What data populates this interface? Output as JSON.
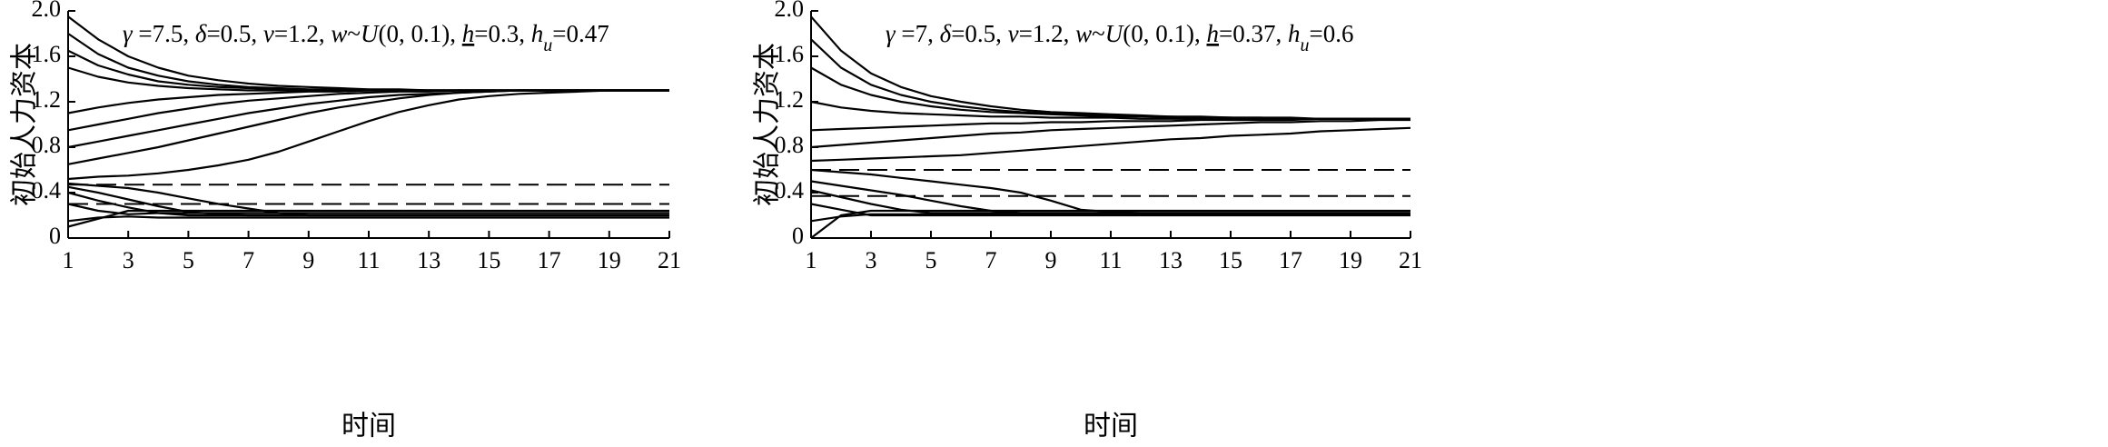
{
  "chart_data": [
    {
      "type": "line",
      "color": "#000000",
      "y_label": "初始人力资本",
      "x_label": "时间",
      "annotation_parts": [
        {
          "text": "γ",
          "style": "italic"
        },
        {
          "text": " =7.5, ",
          "style": "normal"
        },
        {
          "text": "δ",
          "style": "italic"
        },
        {
          "text": "=0.5, ",
          "style": "normal"
        },
        {
          "text": "v",
          "style": "italic"
        },
        {
          "text": "=1.2, ",
          "style": "normal"
        },
        {
          "text": "w",
          "style": "italic"
        },
        {
          "text": "~",
          "style": "normal"
        },
        {
          "text": "U",
          "style": "italic"
        },
        {
          "text": "(0, 0.1), ",
          "style": "normal"
        },
        {
          "text": "h",
          "style": "underline-italic"
        },
        {
          "text": "=0.3, ",
          "style": "normal"
        },
        {
          "text": "h",
          "style": "italic"
        },
        {
          "text": "u",
          "style": "sub-italic"
        },
        {
          "text": "=0.47",
          "style": "normal"
        }
      ],
      "reference_lines": [
        0.47,
        0.3
      ],
      "reference_line_style": "dashed",
      "x": [
        1,
        2,
        3,
        4,
        5,
        6,
        7,
        8,
        9,
        10,
        11,
        12,
        13,
        14,
        15,
        16,
        17,
        18,
        19,
        20,
        21
      ],
      "xlim": [
        1,
        21
      ],
      "xticks": [
        1,
        3,
        5,
        7,
        9,
        11,
        13,
        15,
        17,
        19,
        21
      ],
      "ylim": [
        0,
        2
      ],
      "yticks": [
        0,
        0.4,
        0.8,
        1.2,
        1.6,
        {
          "value": 2,
          "label": "2.0"
        }
      ],
      "series": [
        {
          "values": [
            1.95,
            1.75,
            1.6,
            1.5,
            1.43,
            1.39,
            1.36,
            1.34,
            1.33,
            1.32,
            1.31,
            1.31,
            1.3,
            1.3,
            1.3,
            1.3,
            1.3,
            1.3,
            1.3,
            1.3,
            1.3
          ]
        },
        {
          "values": [
            1.8,
            1.62,
            1.5,
            1.43,
            1.38,
            1.35,
            1.33,
            1.32,
            1.31,
            1.31,
            1.3,
            1.3,
            1.3,
            1.3,
            1.3,
            1.3,
            1.3,
            1.3,
            1.3,
            1.3,
            1.3
          ]
        },
        {
          "values": [
            1.65,
            1.52,
            1.44,
            1.38,
            1.35,
            1.33,
            1.32,
            1.31,
            1.3,
            1.3,
            1.3,
            1.3,
            1.3,
            1.3,
            1.3,
            1.3,
            1.3,
            1.3,
            1.3,
            1.3,
            1.3
          ]
        },
        {
          "values": [
            1.5,
            1.42,
            1.37,
            1.34,
            1.32,
            1.31,
            1.3,
            1.3,
            1.3,
            1.3,
            1.3,
            1.3,
            1.3,
            1.3,
            1.3,
            1.3,
            1.3,
            1.3,
            1.3,
            1.3,
            1.3
          ]
        },
        {
          "values": [
            1.1,
            1.15,
            1.19,
            1.22,
            1.24,
            1.26,
            1.27,
            1.28,
            1.29,
            1.29,
            1.3,
            1.3,
            1.3,
            1.3,
            1.3,
            1.3,
            1.3,
            1.3,
            1.3,
            1.3,
            1.3
          ]
        },
        {
          "values": [
            0.95,
            1.0,
            1.05,
            1.1,
            1.14,
            1.18,
            1.21,
            1.23,
            1.25,
            1.27,
            1.28,
            1.29,
            1.29,
            1.3,
            1.3,
            1.3,
            1.3,
            1.3,
            1.3,
            1.3,
            1.3
          ]
        },
        {
          "values": [
            0.8,
            0.85,
            0.9,
            0.95,
            1.0,
            1.05,
            1.1,
            1.14,
            1.18,
            1.21,
            1.24,
            1.26,
            1.27,
            1.28,
            1.29,
            1.3,
            1.3,
            1.3,
            1.3,
            1.3,
            1.3
          ]
        },
        {
          "values": [
            0.65,
            0.7,
            0.75,
            0.8,
            0.86,
            0.92,
            0.98,
            1.04,
            1.1,
            1.15,
            1.19,
            1.23,
            1.26,
            1.28,
            1.29,
            1.3,
            1.3,
            1.3,
            1.3,
            1.3,
            1.3
          ]
        },
        {
          "values": [
            0.52,
            0.54,
            0.55,
            0.57,
            0.6,
            0.64,
            0.69,
            0.76,
            0.85,
            0.94,
            1.03,
            1.11,
            1.17,
            1.22,
            1.25,
            1.27,
            1.28,
            1.29,
            1.3,
            1.3,
            1.3
          ]
        },
        {
          "values": [
            0.48,
            0.46,
            0.44,
            0.4,
            0.35,
            0.3,
            0.26,
            0.22,
            0.2,
            0.2,
            0.2,
            0.2,
            0.2,
            0.2,
            0.2,
            0.2,
            0.2,
            0.2,
            0.2,
            0.2,
            0.2
          ]
        },
        {
          "values": [
            0.45,
            0.4,
            0.34,
            0.28,
            0.23,
            0.21,
            0.2,
            0.2,
            0.2,
            0.2,
            0.2,
            0.2,
            0.2,
            0.2,
            0.2,
            0.2,
            0.2,
            0.2,
            0.2,
            0.2,
            0.2
          ]
        },
        {
          "values": [
            0.4,
            0.33,
            0.27,
            0.22,
            0.2,
            0.2,
            0.2,
            0.2,
            0.2,
            0.2,
            0.2,
            0.2,
            0.2,
            0.2,
            0.2,
            0.2,
            0.2,
            0.2,
            0.2,
            0.2,
            0.2
          ]
        },
        {
          "values": [
            0.3,
            0.24,
            0.21,
            0.22,
            0.22,
            0.22,
            0.22,
            0.22,
            0.22,
            0.22,
            0.22,
            0.22,
            0.22,
            0.22,
            0.22,
            0.22,
            0.22,
            0.22,
            0.22,
            0.22,
            0.22
          ]
        },
        {
          "values": [
            0.15,
            0.18,
            0.19,
            0.18,
            0.18,
            0.18,
            0.18,
            0.18,
            0.18,
            0.18,
            0.18,
            0.18,
            0.18,
            0.18,
            0.18,
            0.18,
            0.18,
            0.18,
            0.18,
            0.18,
            0.18
          ]
        },
        {
          "values": [
            0.1,
            0.17,
            0.24,
            0.24,
            0.24,
            0.24,
            0.24,
            0.24,
            0.24,
            0.24,
            0.24,
            0.24,
            0.24,
            0.24,
            0.24,
            0.24,
            0.24,
            0.24,
            0.24,
            0.24,
            0.24
          ]
        }
      ]
    },
    {
      "type": "line",
      "color": "#000000",
      "y_label": "初始人力资本",
      "x_label": "时间",
      "annotation_parts": [
        {
          "text": "γ",
          "style": "italic"
        },
        {
          "text": " =7, ",
          "style": "normal"
        },
        {
          "text": "δ",
          "style": "italic"
        },
        {
          "text": "=0.5, ",
          "style": "normal"
        },
        {
          "text": "v",
          "style": "italic"
        },
        {
          "text": "=1.2, ",
          "style": "normal"
        },
        {
          "text": "w",
          "style": "italic"
        },
        {
          "text": "~",
          "style": "normal"
        },
        {
          "text": "U",
          "style": "italic"
        },
        {
          "text": "(0, 0.1), ",
          "style": "normal"
        },
        {
          "text": "h",
          "style": "underline-italic"
        },
        {
          "text": "=0.37, ",
          "style": "normal"
        },
        {
          "text": "h",
          "style": "italic"
        },
        {
          "text": "u",
          "style": "sub-italic"
        },
        {
          "text": "=0.6",
          "style": "normal"
        }
      ],
      "reference_lines": [
        0.6,
        0.37
      ],
      "reference_line_style": "dashed",
      "x": [
        1,
        2,
        3,
        4,
        5,
        6,
        7,
        8,
        9,
        10,
        11,
        12,
        13,
        14,
        15,
        16,
        17,
        18,
        19,
        20,
        21
      ],
      "xlim": [
        1,
        21
      ],
      "xticks": [
        1,
        3,
        5,
        7,
        9,
        11,
        13,
        15,
        17,
        19,
        21
      ],
      "ylim": [
        0,
        2
      ],
      "yticks": [
        0,
        0.4,
        0.8,
        1.2,
        1.6,
        {
          "value": 2,
          "label": "2.0"
        }
      ],
      "series": [
        {
          "values": [
            1.95,
            1.65,
            1.45,
            1.33,
            1.25,
            1.2,
            1.16,
            1.13,
            1.11,
            1.1,
            1.09,
            1.08,
            1.07,
            1.07,
            1.06,
            1.06,
            1.06,
            1.05,
            1.05,
            1.05,
            1.05
          ]
        },
        {
          "values": [
            1.75,
            1.5,
            1.35,
            1.26,
            1.2,
            1.16,
            1.13,
            1.11,
            1.1,
            1.09,
            1.08,
            1.07,
            1.07,
            1.06,
            1.06,
            1.06,
            1.05,
            1.05,
            1.05,
            1.05,
            1.05
          ]
        },
        {
          "values": [
            1.5,
            1.35,
            1.26,
            1.2,
            1.16,
            1.13,
            1.11,
            1.1,
            1.09,
            1.08,
            1.07,
            1.07,
            1.06,
            1.06,
            1.06,
            1.05,
            1.05,
            1.05,
            1.05,
            1.05,
            1.05
          ]
        },
        {
          "values": [
            1.2,
            1.15,
            1.12,
            1.1,
            1.09,
            1.08,
            1.07,
            1.07,
            1.06,
            1.06,
            1.06,
            1.05,
            1.05,
            1.05,
            1.05,
            1.05,
            1.05,
            1.05,
            1.05,
            1.05,
            1.05
          ]
        },
        {
          "values": [
            0.95,
            0.96,
            0.97,
            0.98,
            0.99,
            1.0,
            1.01,
            1.01,
            1.02,
            1.02,
            1.03,
            1.03,
            1.03,
            1.04,
            1.04,
            1.04,
            1.04,
            1.05,
            1.05,
            1.05,
            1.05
          ]
        },
        {
          "values": [
            0.8,
            0.82,
            0.84,
            0.86,
            0.88,
            0.9,
            0.92,
            0.93,
            0.95,
            0.96,
            0.97,
            0.98,
            0.99,
            1.0,
            1.01,
            1.02,
            1.02,
            1.03,
            1.03,
            1.04,
            1.04
          ]
        },
        {
          "values": [
            0.68,
            0.69,
            0.7,
            0.71,
            0.72,
            0.73,
            0.75,
            0.77,
            0.79,
            0.81,
            0.83,
            0.85,
            0.87,
            0.88,
            0.9,
            0.91,
            0.92,
            0.94,
            0.95,
            0.96,
            0.97
          ]
        },
        {
          "values": [
            0.6,
            0.58,
            0.56,
            0.53,
            0.5,
            0.47,
            0.44,
            0.4,
            0.33,
            0.25,
            0.23,
            0.22,
            0.22,
            0.22,
            0.22,
            0.22,
            0.22,
            0.22,
            0.22,
            0.22,
            0.22
          ]
        },
        {
          "values": [
            0.5,
            0.46,
            0.42,
            0.38,
            0.33,
            0.28,
            0.24,
            0.22,
            0.22,
            0.22,
            0.22,
            0.22,
            0.22,
            0.22,
            0.22,
            0.22,
            0.22,
            0.22,
            0.22,
            0.22,
            0.22
          ]
        },
        {
          "values": [
            0.42,
            0.36,
            0.3,
            0.25,
            0.22,
            0.22,
            0.22,
            0.22,
            0.22,
            0.22,
            0.22,
            0.22,
            0.22,
            0.22,
            0.22,
            0.22,
            0.22,
            0.22,
            0.22,
            0.22,
            0.22
          ]
        },
        {
          "values": [
            0.3,
            0.25,
            0.2,
            0.2,
            0.2,
            0.2,
            0.2,
            0.2,
            0.2,
            0.2,
            0.2,
            0.2,
            0.2,
            0.2,
            0.2,
            0.2,
            0.2,
            0.2,
            0.2,
            0.2,
            0.2
          ]
        },
        {
          "values": [
            0,
            0.2,
            0.24,
            0.24,
            0.24,
            0.24,
            0.24,
            0.24,
            0.24,
            0.24,
            0.24,
            0.24,
            0.24,
            0.24,
            0.24,
            0.24,
            0.24,
            0.24,
            0.24,
            0.24,
            0.24
          ]
        },
        {
          "values": [
            0.15,
            0.19,
            0.21,
            0.21,
            0.21,
            0.21,
            0.21,
            0.21,
            0.21,
            0.21,
            0.21,
            0.21,
            0.21,
            0.21,
            0.21,
            0.21,
            0.21,
            0.21,
            0.21,
            0.21,
            0.21
          ]
        }
      ]
    }
  ]
}
